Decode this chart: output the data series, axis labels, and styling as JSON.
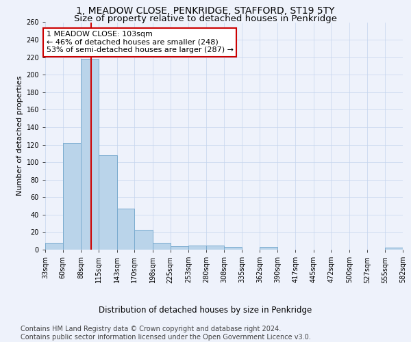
{
  "title": "1, MEADOW CLOSE, PENKRIDGE, STAFFORD, ST19 5TY",
  "subtitle": "Size of property relative to detached houses in Penkridge",
  "xlabel": "Distribution of detached houses by size in Penkridge",
  "ylabel": "Number of detached properties",
  "bar_color": "#bad4ea",
  "bar_edge_color": "#7aabcf",
  "background_color": "#eef2fb",
  "grid_color": "#c5d5ee",
  "vline_color": "#cc0000",
  "vline_x": 103,
  "annotation_text": "1 MEADOW CLOSE: 103sqm\n← 46% of detached houses are smaller (248)\n53% of semi-detached houses are larger (287) →",
  "annotation_box_color": "#ffffff",
  "annotation_box_edge": "#cc0000",
  "bins": [
    33,
    60,
    88,
    115,
    143,
    170,
    198,
    225,
    253,
    280,
    308,
    335,
    362,
    390,
    417,
    445,
    472,
    500,
    527,
    555,
    582
  ],
  "counts": [
    8,
    122,
    218,
    108,
    47,
    23,
    8,
    4,
    5,
    5,
    3,
    0,
    3,
    0,
    0,
    0,
    0,
    0,
    0,
    2
  ],
  "ylim": [
    0,
    260
  ],
  "yticks": [
    0,
    20,
    40,
    60,
    80,
    100,
    120,
    140,
    160,
    180,
    200,
    220,
    240,
    260
  ],
  "footer_text": "Contains HM Land Registry data © Crown copyright and database right 2024.\nContains public sector information licensed under the Open Government Licence v3.0.",
  "title_fontsize": 10,
  "subtitle_fontsize": 9.5,
  "xlabel_fontsize": 8.5,
  "ylabel_fontsize": 8,
  "tick_fontsize": 7,
  "footer_fontsize": 7,
  "annot_fontsize": 8
}
